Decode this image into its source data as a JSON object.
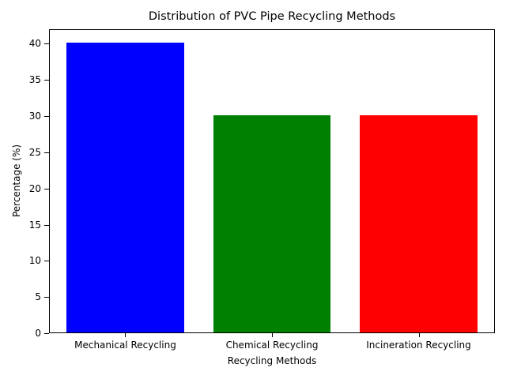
{
  "chart_data": {
    "type": "bar",
    "title": "Distribution of PVC Pipe Recycling Methods",
    "xlabel": "Recycling Methods",
    "ylabel": "Percentage (%)",
    "categories": [
      "Mechanical Recycling",
      "Chemical Recycling",
      "Incineration Recycling"
    ],
    "values": [
      40,
      30,
      30
    ],
    "colors": [
      "#0000ff",
      "#008000",
      "#ff0000"
    ],
    "ylim": [
      0,
      42
    ],
    "yticks": [
      0,
      5,
      10,
      15,
      20,
      25,
      30,
      35,
      40
    ],
    "grid": false,
    "legend": null
  }
}
